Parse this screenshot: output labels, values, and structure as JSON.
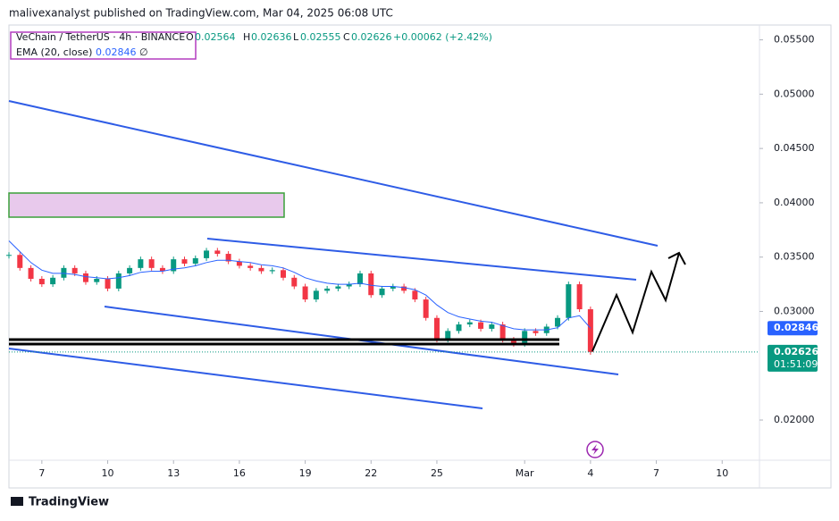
{
  "header": {
    "publisher": "malivexanalyst published on TradingView.com, Mar 04, 2025 06:08 UTC"
  },
  "legend": {
    "symbol": "VeChain / TetherUS · 4h · BINANCE",
    "open_label": "O",
    "open": "0.02564",
    "high_label": "H",
    "high": "0.02636",
    "low_label": "L",
    "low": "0.02555",
    "close_label": "C",
    "close": "0.02626",
    "change": "+0.00062 (+2.42%)",
    "ema_name": "EMA (20, close)",
    "ema_value": "0.02846",
    "ema_extra": "∅"
  },
  "footer": {
    "brand": "TradingView"
  },
  "chart_data": {
    "type": "candlestick",
    "x": [
      -1.5,
      -1,
      -0.5,
      0,
      0.5,
      1,
      1.5,
      2,
      2.5,
      3,
      3.5,
      4,
      4.5,
      5,
      5.5,
      6,
      6.5,
      7,
      7.5,
      8,
      8.5,
      9,
      9.5,
      10,
      10.5,
      11,
      11.5,
      12,
      12.5,
      13,
      13.5,
      14,
      14.5,
      15,
      15.5,
      16,
      16.5,
      17,
      17.5,
      18,
      18.5,
      19,
      19.5,
      20,
      20.5,
      21,
      21.5,
      22,
      22.5,
      23,
      23.5,
      24,
      24.5,
      25
    ],
    "series": [
      {
        "name": "VET/USDT",
        "values": [
          0.0352,
          0.034,
          0.033,
          0.0325,
          0.0331,
          0.034,
          0.0335,
          0.0327,
          0.033,
          0.0321,
          0.0335,
          0.034,
          0.0348,
          0.034,
          0.0337,
          0.0348,
          0.0344,
          0.0349,
          0.0356,
          0.0353,
          0.0346,
          0.0342,
          0.034,
          0.0337,
          0.0338,
          0.0331,
          0.0323,
          0.0311,
          0.0319,
          0.0321,
          0.0323,
          0.0325,
          0.0335,
          0.0315,
          0.0321,
          0.0323,
          0.0319,
          0.0311,
          0.0294,
          0.0274,
          0.0282,
          0.0288,
          0.029,
          0.0284,
          0.0288,
          0.0274,
          0.027,
          0.0282,
          0.028,
          0.0286,
          0.0294,
          0.0325,
          0.0302,
          0.02626
        ]
      },
      {
        "name": "EMA (20, close)",
        "color": "#2962ff",
        "values": [
          0.0365,
          0.0355,
          0.0345,
          0.0338,
          0.0335,
          0.0335,
          0.0334,
          0.0332,
          0.0331,
          0.033,
          0.0331,
          0.0333,
          0.0336,
          0.0337,
          0.0337,
          0.0339,
          0.034,
          0.0342,
          0.0345,
          0.0347,
          0.0347,
          0.0346,
          0.0345,
          0.0343,
          0.0342,
          0.034,
          0.0336,
          0.0331,
          0.0328,
          0.0326,
          0.0325,
          0.0325,
          0.0326,
          0.0324,
          0.0323,
          0.0323,
          0.0322,
          0.032,
          0.0315,
          0.0306,
          0.0299,
          0.0295,
          0.0293,
          0.0291,
          0.029,
          0.0287,
          0.0284,
          0.0283,
          0.0283,
          0.0283,
          0.0285,
          0.0294,
          0.0296,
          0.02846
        ]
      }
    ],
    "ylim": [
      0.0163,
      0.0562
    ],
    "yticks": [
      {
        "value": 0.055,
        "label": "0.05500"
      },
      {
        "value": 0.05,
        "label": "0.05000"
      },
      {
        "value": 0.045,
        "label": "0.04500"
      },
      {
        "value": 0.04,
        "label": "0.04000"
      },
      {
        "value": 0.035,
        "label": "0.03500"
      },
      {
        "value": 0.03,
        "label": "0.03000"
      },
      {
        "value": 0.02,
        "label": "0.02000"
      }
    ],
    "xlim": [
      -1.5,
      32.7
    ],
    "xticks": [
      {
        "value": 0,
        "label": "7"
      },
      {
        "value": 3,
        "label": "10"
      },
      {
        "value": 6,
        "label": "13"
      },
      {
        "value": 9,
        "label": "16"
      },
      {
        "value": 12,
        "label": "19"
      },
      {
        "value": 15,
        "label": "22"
      },
      {
        "value": 18,
        "label": "25"
      },
      {
        "value": 22,
        "label": "Mar"
      },
      {
        "value": 25,
        "label": "4"
      },
      {
        "value": 28,
        "label": "7"
      },
      {
        "value": 31,
        "label": "10"
      }
    ],
    "ema_last": {
      "value": 0.02846,
      "label": "0.02846"
    },
    "price_last": {
      "value": 0.02626,
      "label": "0.02626",
      "countdown": "01:51:09"
    },
    "up_color": "#089981",
    "down_color": "#f23645"
  }
}
